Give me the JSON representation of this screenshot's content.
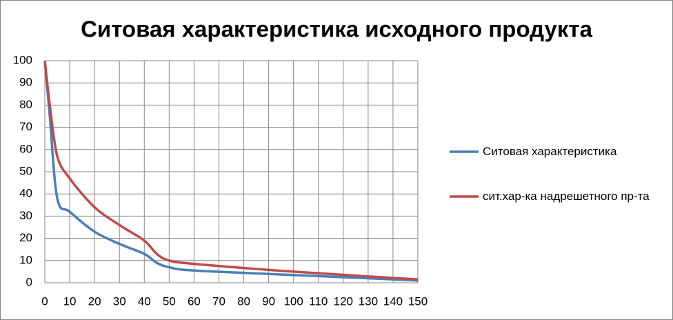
{
  "chart_data": {
    "type": "line",
    "title": "Ситовая характеристика исходного продукта",
    "x": [
      0,
      2,
      5,
      10,
      20,
      30,
      40,
      45,
      50,
      60,
      100,
      150
    ],
    "series": [
      {
        "name": "Ситовая характеристика",
        "color": "#4a7ebb",
        "values": [
          100,
          75,
          38,
          32,
          23,
          17.5,
          13,
          9,
          7,
          5.5,
          3.5,
          1
        ]
      },
      {
        "name": "сит.хар-ка надрешетного пр-та",
        "color": "#be4b48",
        "values": [
          100,
          80,
          57,
          47,
          34,
          26,
          19,
          13,
          10,
          8.5,
          5,
          1.5
        ]
      }
    ],
    "xlim": [
      0,
      150
    ],
    "xticks": [
      0,
      10,
      20,
      30,
      40,
      50,
      60,
      70,
      80,
      90,
      100,
      110,
      120,
      130,
      140,
      150
    ],
    "ylim": [
      0,
      100
    ],
    "yticks": [
      0,
      10,
      20,
      30,
      40,
      50,
      60,
      70,
      80,
      90,
      100
    ],
    "grid": true,
    "legend": "right"
  }
}
